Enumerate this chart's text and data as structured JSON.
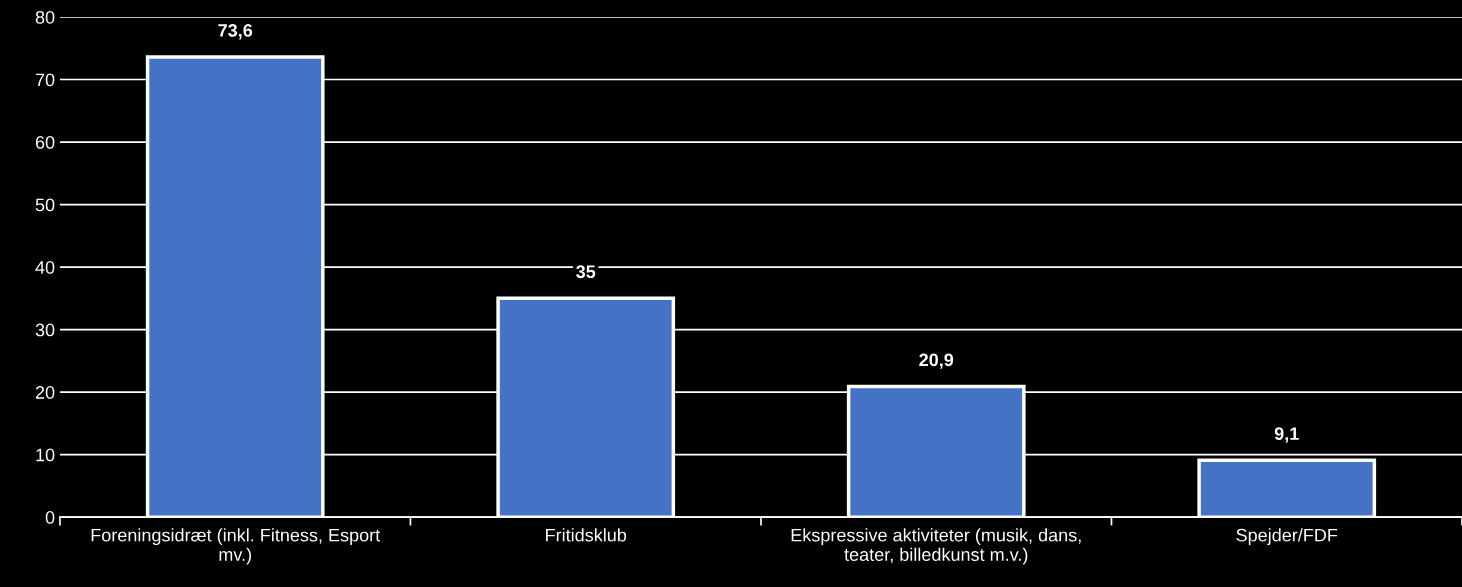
{
  "chart_data": {
    "type": "bar",
    "categories": [
      "Foreningsidræt (inkl. Fitness, Esport mv.)",
      "Fritidsklub",
      "Ekspressive aktiviteter (musik, dans, teater, billedkunst m.v.)",
      "Spejder/FDF"
    ],
    "values": [
      73.6,
      35,
      20.9,
      9.1
    ],
    "value_labels": [
      "73,6",
      "35",
      "20,9",
      "9,1"
    ],
    "color": "#4472c4",
    "ylim": [
      0,
      80
    ],
    "yticks": [
      0,
      10,
      20,
      30,
      40,
      50,
      60,
      70,
      80
    ],
    "grid": "y"
  }
}
